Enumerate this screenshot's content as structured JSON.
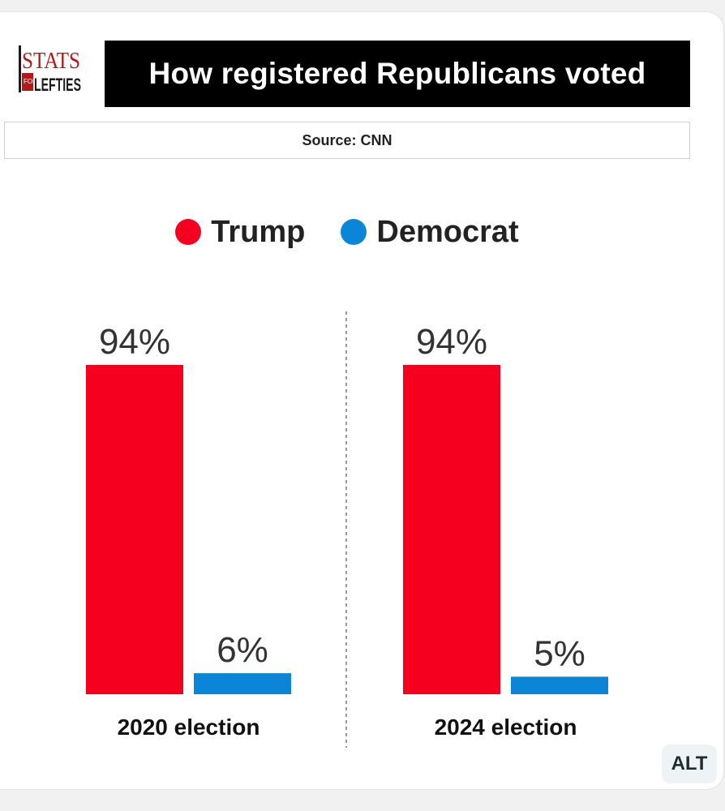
{
  "logo": {
    "line1": "STATS",
    "line2": "FOR",
    "line3": "LEFTIES"
  },
  "header": {
    "title": "How registered Republicans voted"
  },
  "source": {
    "text": "Source: CNN"
  },
  "colors": {
    "trump": "#f5001e",
    "democrat": "#0a85d8"
  },
  "alt_badge": {
    "label": "ALT"
  },
  "chart_data": {
    "type": "bar",
    "title": "How registered Republicans voted",
    "categories": [
      "2020 election",
      "2024 election"
    ],
    "series": [
      {
        "name": "Trump",
        "values": [
          94,
          94
        ],
        "labels": [
          "94%",
          "94%"
        ]
      },
      {
        "name": "Democrat",
        "values": [
          6,
          5
        ],
        "labels": [
          "6%",
          "5%"
        ]
      }
    ],
    "legend": "top-center",
    "ylim": [
      0,
      94
    ],
    "grid": false,
    "xlabel": "",
    "ylabel": ""
  }
}
